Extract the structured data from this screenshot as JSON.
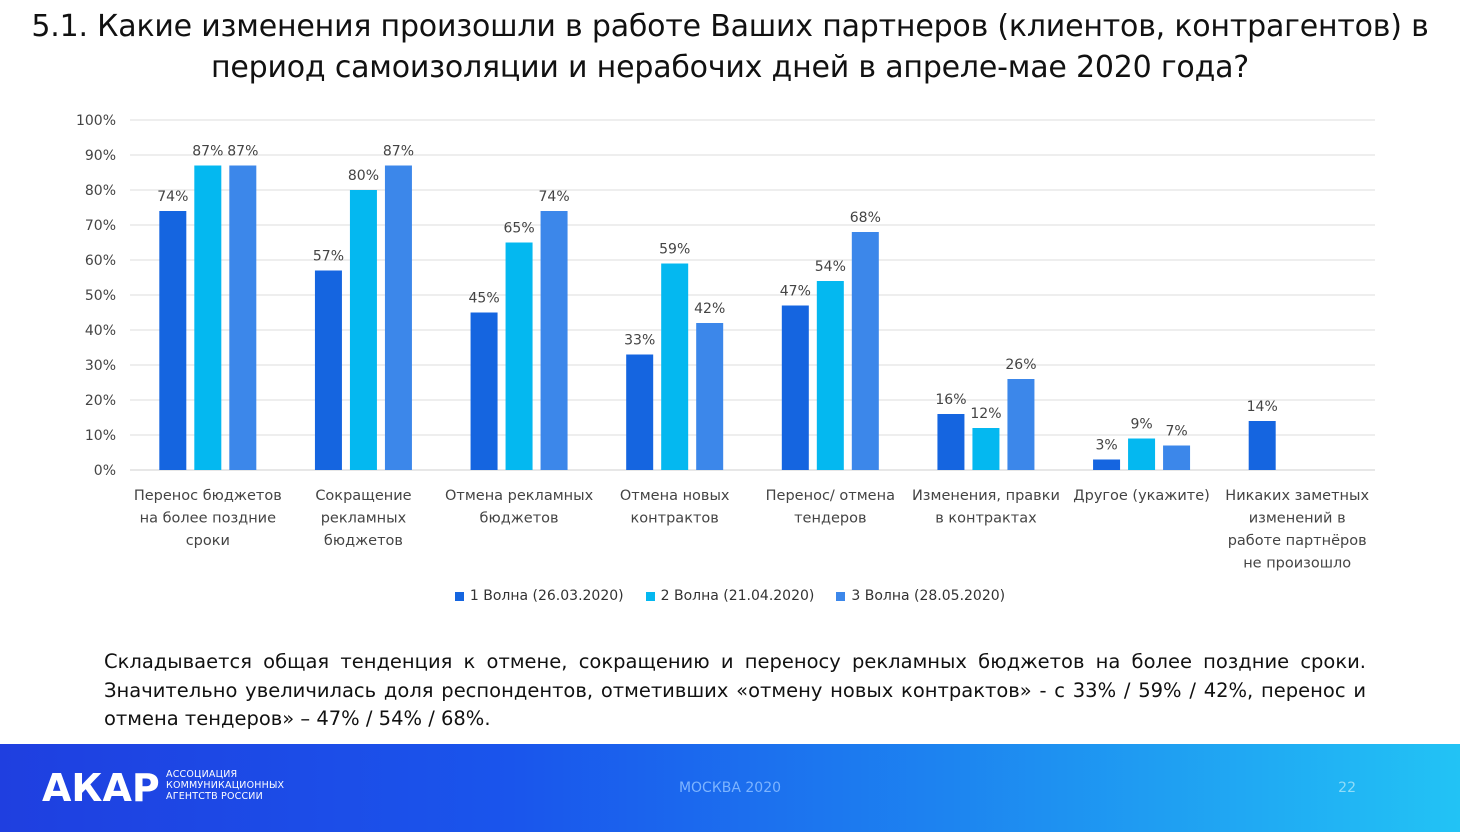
{
  "slide": {
    "title_line1": "5.1. Какие изменения произошли в работе Ваших партнеров (клиентов, контрагентов) в",
    "title_line2": "период самоизоляции и нерабочих дней в апреле-мае 2020 года?",
    "summary": "Складывается общая тенденция к отмене, сокращению и переносу рекламных бюджетов на более поздние сроки. Значительно увеличилась доля респондентов, отметивших «отмену новых контрактов» - с 33% / 59% / 42%, перенос и отмена тендеров» – 47% / 54% / 68%."
  },
  "chart_data": {
    "type": "bar",
    "categories": [
      [
        "Перенос бюджетов",
        "на более поздние",
        "сроки"
      ],
      [
        "Сокращение",
        "рекламных",
        "бюджетов"
      ],
      [
        "Отмена рекламных",
        "бюджетов"
      ],
      [
        "Отмена новых",
        "контрактов"
      ],
      [
        "Перенос/ отмена",
        "тендеров"
      ],
      [
        "Изменения, правки",
        "в контрактах"
      ],
      [
        "Другое (укажите)"
      ],
      [
        "Никаких заметных",
        "изменений в",
        "работе партнёров",
        "не произошло"
      ]
    ],
    "series": [
      {
        "name": "1 Волна (26.03.2020)",
        "color": "#1565e0",
        "values": [
          74,
          57,
          45,
          33,
          47,
          16,
          3,
          14
        ]
      },
      {
        "name": "2 Волна (21.04.2020)",
        "color": "#04b8f0",
        "values": [
          87,
          80,
          65,
          59,
          54,
          12,
          9,
          null
        ]
      },
      {
        "name": "3 Волна (28.05.2020)",
        "color": "#3c87ea",
        "values": [
          87,
          87,
          74,
          42,
          68,
          26,
          7,
          null
        ]
      }
    ],
    "ylim": [
      0,
      100
    ],
    "yticks": [
      "0%",
      "10%",
      "20%",
      "30%",
      "40%",
      "50%",
      "60%",
      "70%",
      "80%",
      "90%",
      "100%"
    ],
    "value_suffix": "%",
    "grid": true,
    "legend_position": "bottom"
  },
  "footer": {
    "logo": "АКАР",
    "org_line1": "АССОЦИАЦИЯ",
    "org_line2": "КОММУНИКАЦИОННЫХ",
    "org_line3": "АГЕНТСТВ РОССИИ",
    "city": "МОСКВА 2020",
    "page": "22"
  }
}
